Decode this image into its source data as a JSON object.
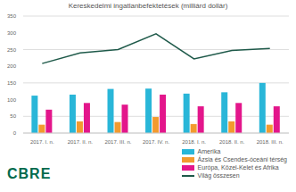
{
  "chart_data": {
    "type": "bar",
    "title": "Kereskedelmi ingatlanbefektetések (milliárd dollár)",
    "categories": [
      "2017. I. n.",
      "2017. II. n.",
      "2017. III. n.",
      "2017. IV. n.",
      "2018. I. n.",
      "2018. II. n.",
      "2018. III. n."
    ],
    "series": [
      {
        "name": "Amerika",
        "type": "bar",
        "color": "#29B6D8",
        "values": [
          112,
          115,
          132,
          133,
          118,
          122,
          150
        ]
      },
      {
        "name": "Ázsia és Csendes-óceáni térség",
        "type": "bar",
        "color": "#F39A2E",
        "values": [
          25,
          35,
          33,
          48,
          27,
          35,
          25
        ]
      },
      {
        "name": "Európa, Közel-Kelet és Afrika",
        "type": "bar",
        "color": "#E3168B",
        "values": [
          70,
          90,
          85,
          115,
          80,
          90,
          80
        ]
      },
      {
        "name": "Világ összesen",
        "type": "line",
        "color": "#1F5A4A",
        "values": [
          208,
          240,
          250,
          297,
          222,
          247,
          253
        ]
      }
    ],
    "ylim": [
      0,
      350
    ],
    "yticks": [
      0,
      50,
      100,
      150,
      200,
      250,
      300,
      350
    ],
    "grid": true,
    "legend": "bottom-right",
    "annotations": [
      "CBRE"
    ]
  }
}
